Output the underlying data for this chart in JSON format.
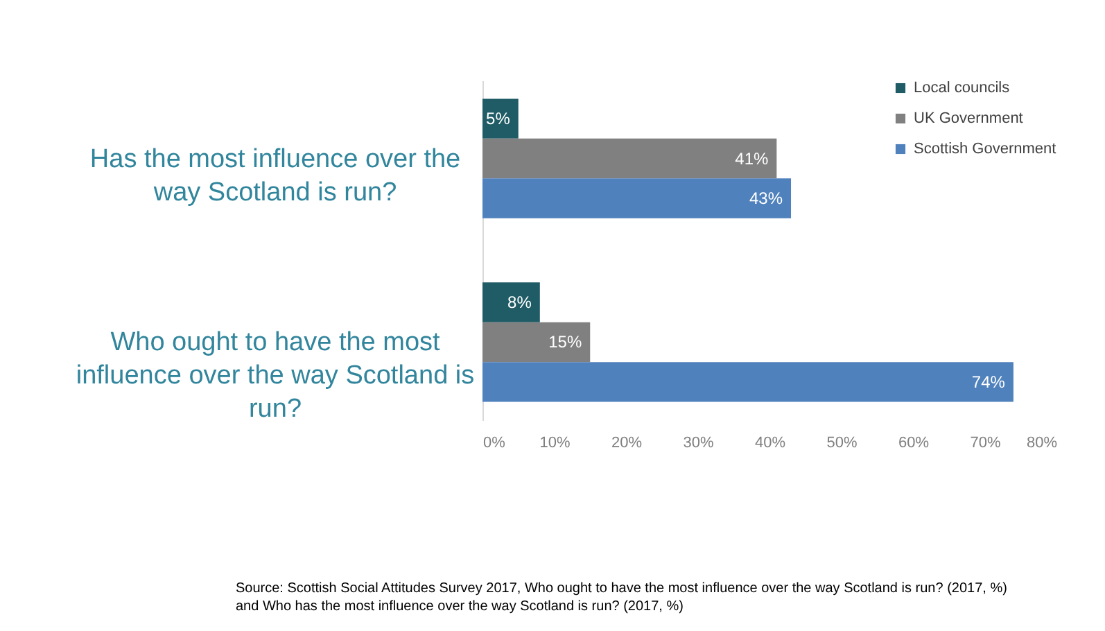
{
  "chart_data": {
    "type": "bar",
    "orientation": "horizontal",
    "categories": [
      "Has the most influence over the way Scotland is run?",
      "Who ought to have the most influence over the way Scotland is run?"
    ],
    "series": [
      {
        "name": "Local councils",
        "color": "#1f5c66",
        "values": [
          5,
          8
        ],
        "value_labels": [
          "5%",
          "8%"
        ]
      },
      {
        "name": "UK Government",
        "color": "#808080",
        "values": [
          41,
          15
        ],
        "value_labels": [
          "41%",
          "15%"
        ]
      },
      {
        "name": "Scottish Government",
        "color": "#4f81bd",
        "values": [
          43,
          74
        ],
        "value_labels": [
          "43%",
          "74%"
        ]
      }
    ],
    "xlim": [
      0,
      80
    ],
    "xticks": [
      {
        "value": 0,
        "label": "0%"
      },
      {
        "value": 10,
        "label": "10%"
      },
      {
        "value": 20,
        "label": "20%"
      },
      {
        "value": 30,
        "label": "30%"
      },
      {
        "value": 40,
        "label": "40%"
      },
      {
        "value": 50,
        "label": "50%"
      },
      {
        "value": 60,
        "label": "60%"
      },
      {
        "value": 70,
        "label": "70%"
      },
      {
        "value": 80,
        "label": "80%"
      }
    ],
    "legend": "top right",
    "annotations": [
      "Source: Scottish Social Attitudes Survey 2017, Who ought to have the most influence over the way Scotland is run? (2017, %) and Who has the most influence over the way Scotland is run? (2017, %)"
    ]
  }
}
